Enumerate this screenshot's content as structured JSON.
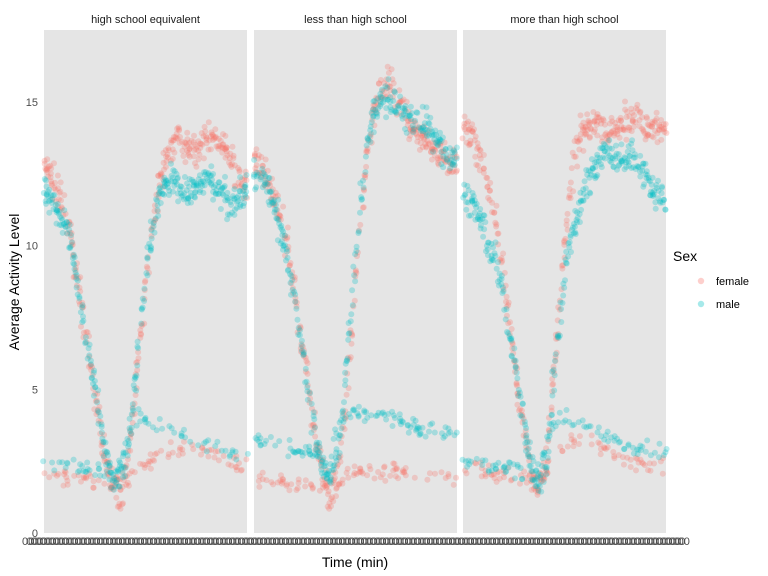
{
  "chart_data": {
    "type": "scatter",
    "title": "",
    "xlabel": "Time (min)",
    "ylabel": "Average Activity Level",
    "x_range": [
      1,
      1440
    ],
    "ylim": [
      0,
      17.5
    ],
    "y_ticks": [
      0,
      5,
      10,
      15
    ],
    "grid": false,
    "legend": {
      "title": "Sex",
      "placement": "right",
      "entries": [
        "female",
        "male"
      ]
    },
    "colors": {
      "female": "#F8766D",
      "male": "#00BFC4",
      "panel": "#E5E5E5"
    },
    "panels": [
      {
        "label": "high school equivalent",
        "series": [
          {
            "name": "female",
            "upper_trend": [
              [
                0,
                12.8
              ],
              [
                60,
                12.3
              ],
              [
                120,
                11.5
              ],
              [
                180,
                10.5
              ],
              [
                240,
                8.8
              ],
              [
                300,
                6.8
              ],
              [
                360,
                4.8
              ],
              [
                420,
                3.0
              ],
              [
                480,
                1.8
              ],
              [
                540,
                1.2
              ],
              [
                600,
                2.5
              ],
              [
                660,
                5.5
              ],
              [
                720,
                8.5
              ],
              [
                780,
                11.0
              ],
              [
                840,
                12.5
              ],
              [
                900,
                13.5
              ],
              [
                960,
                13.8
              ],
              [
                1020,
                13.5
              ],
              [
                1080,
                13.2
              ],
              [
                1140,
                13.5
              ],
              [
                1200,
                13.8
              ],
              [
                1260,
                13.5
              ],
              [
                1320,
                13.0
              ],
              [
                1380,
                12.5
              ],
              [
                1440,
                12.0
              ]
            ],
            "lower_trend": [
              [
                0,
                2.1
              ],
              [
                120,
                2.0
              ],
              [
                240,
                1.9
              ],
              [
                360,
                1.8
              ],
              [
                480,
                1.8
              ],
              [
                600,
                2.0
              ],
              [
                720,
                2.4
              ],
              [
                840,
                2.8
              ],
              [
                960,
                3.0
              ],
              [
                1080,
                2.9
              ],
              [
                1200,
                2.7
              ],
              [
                1320,
                2.5
              ],
              [
                1440,
                2.3
              ]
            ]
          },
          {
            "name": "male",
            "upper_trend": [
              [
                0,
                12.0
              ],
              [
                60,
                11.6
              ],
              [
                120,
                11.0
              ],
              [
                180,
                10.2
              ],
              [
                240,
                8.6
              ],
              [
                300,
                6.8
              ],
              [
                360,
                5.0
              ],
              [
                420,
                3.2
              ],
              [
                480,
                2.0
              ],
              [
                540,
                1.8
              ],
              [
                600,
                3.0
              ],
              [
                660,
                6.0
              ],
              [
                720,
                9.0
              ],
              [
                780,
                11.0
              ],
              [
                840,
                12.0
              ],
              [
                900,
                12.2
              ],
              [
                960,
                12.0
              ],
              [
                1020,
                11.8
              ],
              [
                1080,
                12.0
              ],
              [
                1140,
                12.3
              ],
              [
                1200,
                12.2
              ],
              [
                1260,
                11.8
              ],
              [
                1320,
                11.5
              ],
              [
                1380,
                11.8
              ],
              [
                1440,
                12.0
              ]
            ],
            "lower_trend": [
              [
                0,
                2.5
              ],
              [
                120,
                2.4
              ],
              [
                240,
                2.3
              ],
              [
                360,
                2.2
              ],
              [
                480,
                2.2
              ],
              [
                540,
                2.5
              ],
              [
                600,
                3.5
              ],
              [
                660,
                4.0
              ],
              [
                720,
                4.0
              ],
              [
                840,
                3.8
              ],
              [
                960,
                3.5
              ],
              [
                1080,
                3.2
              ],
              [
                1200,
                3.0
              ],
              [
                1320,
                2.8
              ],
              [
                1440,
                2.7
              ]
            ]
          }
        ]
      },
      {
        "label": "less than high school",
        "series": [
          {
            "name": "female",
            "upper_trend": [
              [
                0,
                13.0
              ],
              [
                60,
                12.6
              ],
              [
                120,
                12.0
              ],
              [
                180,
                11.0
              ],
              [
                240,
                9.8
              ],
              [
                300,
                8.0
              ],
              [
                360,
                6.0
              ],
              [
                420,
                4.0
              ],
              [
                480,
                2.2
              ],
              [
                540,
                1.2
              ],
              [
                600,
                2.0
              ],
              [
                660,
                5.0
              ],
              [
                720,
                8.5
              ],
              [
                780,
                12.0
              ],
              [
                840,
                14.5
              ],
              [
                900,
                15.5
              ],
              [
                960,
                15.8
              ],
              [
                1020,
                15.0
              ],
              [
                1080,
                14.5
              ],
              [
                1140,
                14.0
              ],
              [
                1200,
                13.8
              ],
              [
                1260,
                13.5
              ],
              [
                1320,
                13.2
              ],
              [
                1380,
                13.0
              ],
              [
                1440,
                12.8
              ]
            ],
            "lower_trend": [
              [
                0,
                1.8
              ],
              [
                120,
                1.8
              ],
              [
                240,
                1.7
              ],
              [
                360,
                1.7
              ],
              [
                480,
                1.6
              ],
              [
                600,
                1.8
              ],
              [
                720,
                2.0
              ],
              [
                840,
                2.1
              ],
              [
                960,
                2.2
              ],
              [
                1080,
                2.1
              ],
              [
                1200,
                2.0
              ],
              [
                1320,
                1.9
              ],
              [
                1440,
                1.8
              ]
            ]
          },
          {
            "name": "male",
            "upper_trend": [
              [
                0,
                12.6
              ],
              [
                60,
                12.3
              ],
              [
                120,
                11.8
              ],
              [
                180,
                10.8
              ],
              [
                240,
                9.5
              ],
              [
                300,
                7.8
              ],
              [
                360,
                5.8
              ],
              [
                420,
                3.8
              ],
              [
                480,
                2.4
              ],
              [
                540,
                2.0
              ],
              [
                600,
                3.0
              ],
              [
                660,
                6.0
              ],
              [
                720,
                9.5
              ],
              [
                780,
                12.5
              ],
              [
                840,
                14.5
              ],
              [
                900,
                15.0
              ],
              [
                960,
                15.2
              ],
              [
                1020,
                14.8
              ],
              [
                1080,
                14.5
              ],
              [
                1140,
                14.5
              ],
              [
                1200,
                14.2
              ],
              [
                1260,
                14.0
              ],
              [
                1320,
                13.5
              ],
              [
                1380,
                13.2
              ],
              [
                1440,
                13.0
              ]
            ],
            "lower_trend": [
              [
                0,
                3.3
              ],
              [
                120,
                3.2
              ],
              [
                240,
                3.0
              ],
              [
                360,
                2.8
              ],
              [
                480,
                2.6
              ],
              [
                540,
                3.0
              ],
              [
                600,
                3.8
              ],
              [
                660,
                4.2
              ],
              [
                720,
                4.2
              ],
              [
                840,
                4.0
              ],
              [
                960,
                4.0
              ],
              [
                1080,
                3.8
              ],
              [
                1200,
                3.6
              ],
              [
                1320,
                3.5
              ],
              [
                1440,
                3.4
              ]
            ]
          }
        ]
      },
      {
        "label": "more than high school",
        "series": [
          {
            "name": "female",
            "upper_trend": [
              [
                0,
                14.0
              ],
              [
                60,
                14.0
              ],
              [
                120,
                13.2
              ],
              [
                180,
                12.0
              ],
              [
                240,
                10.5
              ],
              [
                300,
                8.5
              ],
              [
                360,
                6.2
              ],
              [
                420,
                4.0
              ],
              [
                480,
                2.2
              ],
              [
                540,
                1.4
              ],
              [
                600,
                2.8
              ],
              [
                660,
                6.5
              ],
              [
                720,
                10.0
              ],
              [
                780,
                12.8
              ],
              [
                840,
                14.0
              ],
              [
                900,
                14.2
              ],
              [
                960,
                14.2
              ],
              [
                1020,
                14.0
              ],
              [
                1080,
                14.0
              ],
              [
                1140,
                14.3
              ],
              [
                1200,
                14.5
              ],
              [
                1260,
                14.2
              ],
              [
                1320,
                14.0
              ],
              [
                1380,
                14.2
              ],
              [
                1440,
                14.0
              ]
            ],
            "lower_trend": [
              [
                0,
                2.3
              ],
              [
                120,
                2.2
              ],
              [
                240,
                2.0
              ],
              [
                360,
                1.9
              ],
              [
                480,
                1.8
              ],
              [
                600,
                2.2
              ],
              [
                720,
                3.0
              ],
              [
                840,
                3.3
              ],
              [
                960,
                3.0
              ],
              [
                1080,
                2.7
              ],
              [
                1200,
                2.5
              ],
              [
                1320,
                2.4
              ],
              [
                1440,
                2.3
              ]
            ]
          },
          {
            "name": "male",
            "upper_trend": [
              [
                0,
                12.0
              ],
              [
                60,
                11.5
              ],
              [
                120,
                11.0
              ],
              [
                180,
                10.0
              ],
              [
                240,
                9.5
              ],
              [
                300,
                8.0
              ],
              [
                360,
                6.2
              ],
              [
                420,
                4.2
              ],
              [
                480,
                2.5
              ],
              [
                540,
                1.6
              ],
              [
                600,
                2.8
              ],
              [
                660,
                6.0
              ],
              [
                720,
                9.0
              ],
              [
                780,
                10.5
              ],
              [
                840,
                11.5
              ],
              [
                900,
                12.5
              ],
              [
                960,
                13.0
              ],
              [
                1020,
                13.2
              ],
              [
                1080,
                13.0
              ],
              [
                1140,
                13.0
              ],
              [
                1200,
                13.2
              ],
              [
                1260,
                12.8
              ],
              [
                1320,
                12.2
              ],
              [
                1380,
                11.8
              ],
              [
                1440,
                11.5
              ]
            ],
            "lower_trend": [
              [
                0,
                2.5
              ],
              [
                120,
                2.4
              ],
              [
                240,
                2.3
              ],
              [
                360,
                2.2
              ],
              [
                480,
                2.0
              ],
              [
                540,
                2.2
              ],
              [
                600,
                3.2
              ],
              [
                660,
                4.0
              ],
              [
                720,
                4.0
              ],
              [
                840,
                3.8
              ],
              [
                960,
                3.5
              ],
              [
                1080,
                3.2
              ],
              [
                1200,
                3.0
              ],
              [
                1320,
                2.9
              ],
              [
                1440,
                2.8
              ]
            ]
          }
        ]
      }
    ]
  }
}
